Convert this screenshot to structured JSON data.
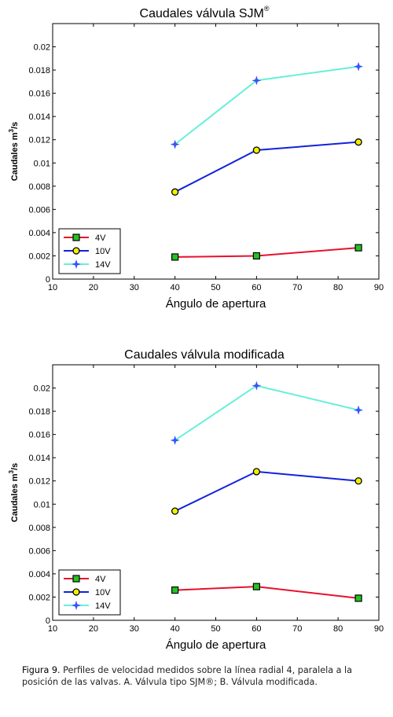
{
  "chart_data": [
    {
      "type": "line",
      "title": "Caudales válvula SJM",
      "title_mark": "®",
      "xlabel": "Ángulo de apertura",
      "ylabel": "Caudales m",
      "ylabel_sup": "3",
      "ylabel_tail": "/s",
      "xlim": [
        10,
        90
      ],
      "ylim": [
        0,
        0.022
      ],
      "xticks": [
        10,
        20,
        30,
        40,
        50,
        60,
        70,
        80,
        90
      ],
      "yticks": [
        0,
        0.002,
        0.004,
        0.006,
        0.008,
        0.01,
        0.012,
        0.014,
        0.016,
        0.018,
        0.02
      ],
      "ytick_labels": [
        "0",
        "0.002",
        "0.004",
        "0.006",
        "0.008",
        "0.01",
        "0.012",
        "0.014",
        "0.016",
        "0.018",
        "0.02"
      ],
      "grid": false,
      "legend_position": "bottom-left",
      "series": [
        {
          "name": "4V",
          "color": "#e8112d",
          "marker": "square",
          "marker_color": "#22c322",
          "x": [
            40,
            60,
            85
          ],
          "y": [
            0.0019,
            0.002,
            0.0027
          ]
        },
        {
          "name": "10V",
          "color": "#1122dd",
          "marker": "circle",
          "marker_color": "#f0f000",
          "x": [
            40,
            60,
            85
          ],
          "y": [
            0.0075,
            0.0111,
            0.0118
          ]
        },
        {
          "name": "14V",
          "color": "#66f0d8",
          "marker": "star",
          "marker_color": "#3355ff",
          "x": [
            40,
            60,
            85
          ],
          "y": [
            0.0116,
            0.0171,
            0.0183
          ]
        }
      ]
    },
    {
      "type": "line",
      "title": "Caudales válvula modificada",
      "title_mark": "",
      "xlabel": "Ángulo de apertura",
      "ylabel": "Caudales m",
      "ylabel_sup": "3",
      "ylabel_tail": "/s",
      "xlim": [
        10,
        90
      ],
      "ylim": [
        0,
        0.022
      ],
      "xticks": [
        10,
        20,
        30,
        40,
        50,
        60,
        70,
        80,
        90
      ],
      "yticks": [
        0,
        0.002,
        0.004,
        0.006,
        0.008,
        0.01,
        0.012,
        0.014,
        0.016,
        0.018,
        0.02
      ],
      "ytick_labels": [
        "0",
        "0.002",
        "0.004",
        "0.006",
        "0.008",
        "0.01",
        "0.012",
        "0.014",
        "0.016",
        "0.018",
        "0.02"
      ],
      "grid": false,
      "legend_position": "bottom-left",
      "series": [
        {
          "name": "4V",
          "color": "#e8112d",
          "marker": "square",
          "marker_color": "#22c322",
          "x": [
            40,
            60,
            85
          ],
          "y": [
            0.0026,
            0.0029,
            0.0019
          ]
        },
        {
          "name": "10V",
          "color": "#1122dd",
          "marker": "circle",
          "marker_color": "#f0f000",
          "x": [
            40,
            60,
            85
          ],
          "y": [
            0.0094,
            0.0128,
            0.012
          ]
        },
        {
          "name": "14V",
          "color": "#66f0d8",
          "marker": "star",
          "marker_color": "#3355ff",
          "x": [
            40,
            60,
            85
          ],
          "y": [
            0.0155,
            0.0202,
            0.0181
          ]
        }
      ]
    }
  ],
  "caption": {
    "label": "Figura 9.",
    "text": " Perfiles de velocidad medidos sobre la línea radial 4, paralela a la posición de las valvas. A. Válvula tipo SJM®; B. Válvula modificada."
  }
}
